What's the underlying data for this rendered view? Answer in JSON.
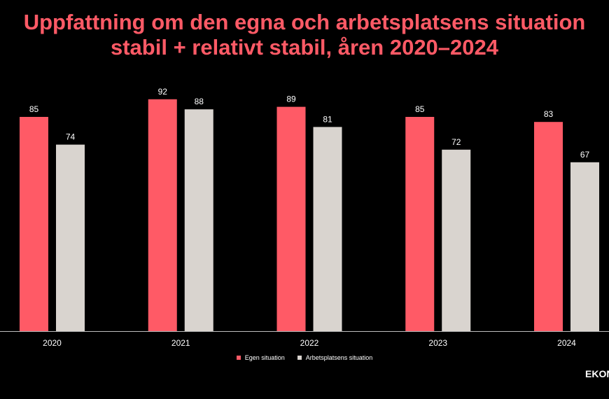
{
  "title": {
    "line1": "Uppfattning om den egna och arbetsplatsens situation",
    "line2": "stabil + relativt stabil, åren 2020–2024"
  },
  "brand": "EKON",
  "colors": {
    "background": "#000000",
    "title": "#ff5a66",
    "series1": "#ff5a66",
    "series2": "#d9d4cf",
    "text": "#ffffff"
  },
  "chart_data": {
    "type": "bar",
    "categories": [
      "2020",
      "2021",
      "2022",
      "2023",
      "2024"
    ],
    "series": [
      {
        "name": "Egen situation",
        "values": [
          85,
          92,
          89,
          85,
          83
        ]
      },
      {
        "name": "Arbetsplatsens situation",
        "values": [
          74,
          88,
          81,
          72,
          67
        ]
      }
    ],
    "ylim": [
      0,
      100
    ],
    "grid": false,
    "legend_position": "bottom",
    "data_labels": true
  }
}
